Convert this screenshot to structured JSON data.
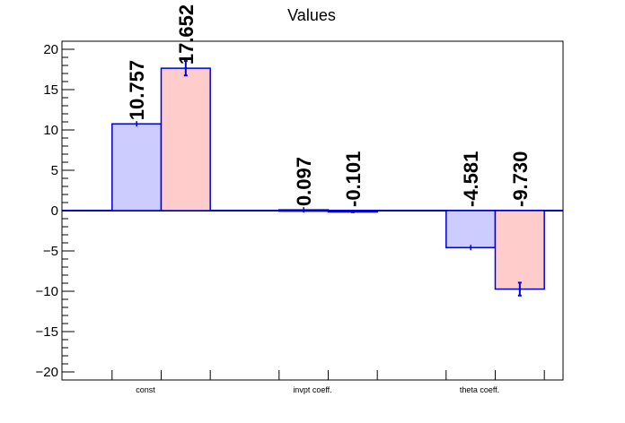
{
  "chart_data": {
    "type": "bar",
    "title": "Values",
    "xlabel": "",
    "ylabel": "",
    "categories": [
      "const",
      "invpt coeff.",
      "theta coeff."
    ],
    "series": [
      {
        "values": [
          10.757,
          0.097,
          -4.581
        ],
        "errors": [
          0,
          0,
          0
        ],
        "labels": [
          "10.757",
          "0.097",
          "-4.581"
        ]
      },
      {
        "values": [
          17.652,
          -0.101,
          -9.73
        ],
        "errors": [
          0.9,
          0.1,
          0.8
        ],
        "labels": [
          "17.652",
          "-0.101",
          "-9.730"
        ]
      }
    ],
    "ylim": [
      -21,
      21
    ],
    "yticks": [
      -20,
      -15,
      -10,
      -5,
      0,
      5,
      10,
      15,
      20
    ],
    "ytick_labels": [
      "−20",
      "−15",
      "−10",
      "−5",
      "0",
      "5",
      "10",
      "15",
      "20"
    ],
    "grid": false,
    "legend": "none"
  },
  "colors": {
    "series_fill": [
      "#ccccff",
      "#ffcccc"
    ],
    "bar_stroke": "#0000dd",
    "zero_line": "#0000cc",
    "axis": "#000000"
  }
}
